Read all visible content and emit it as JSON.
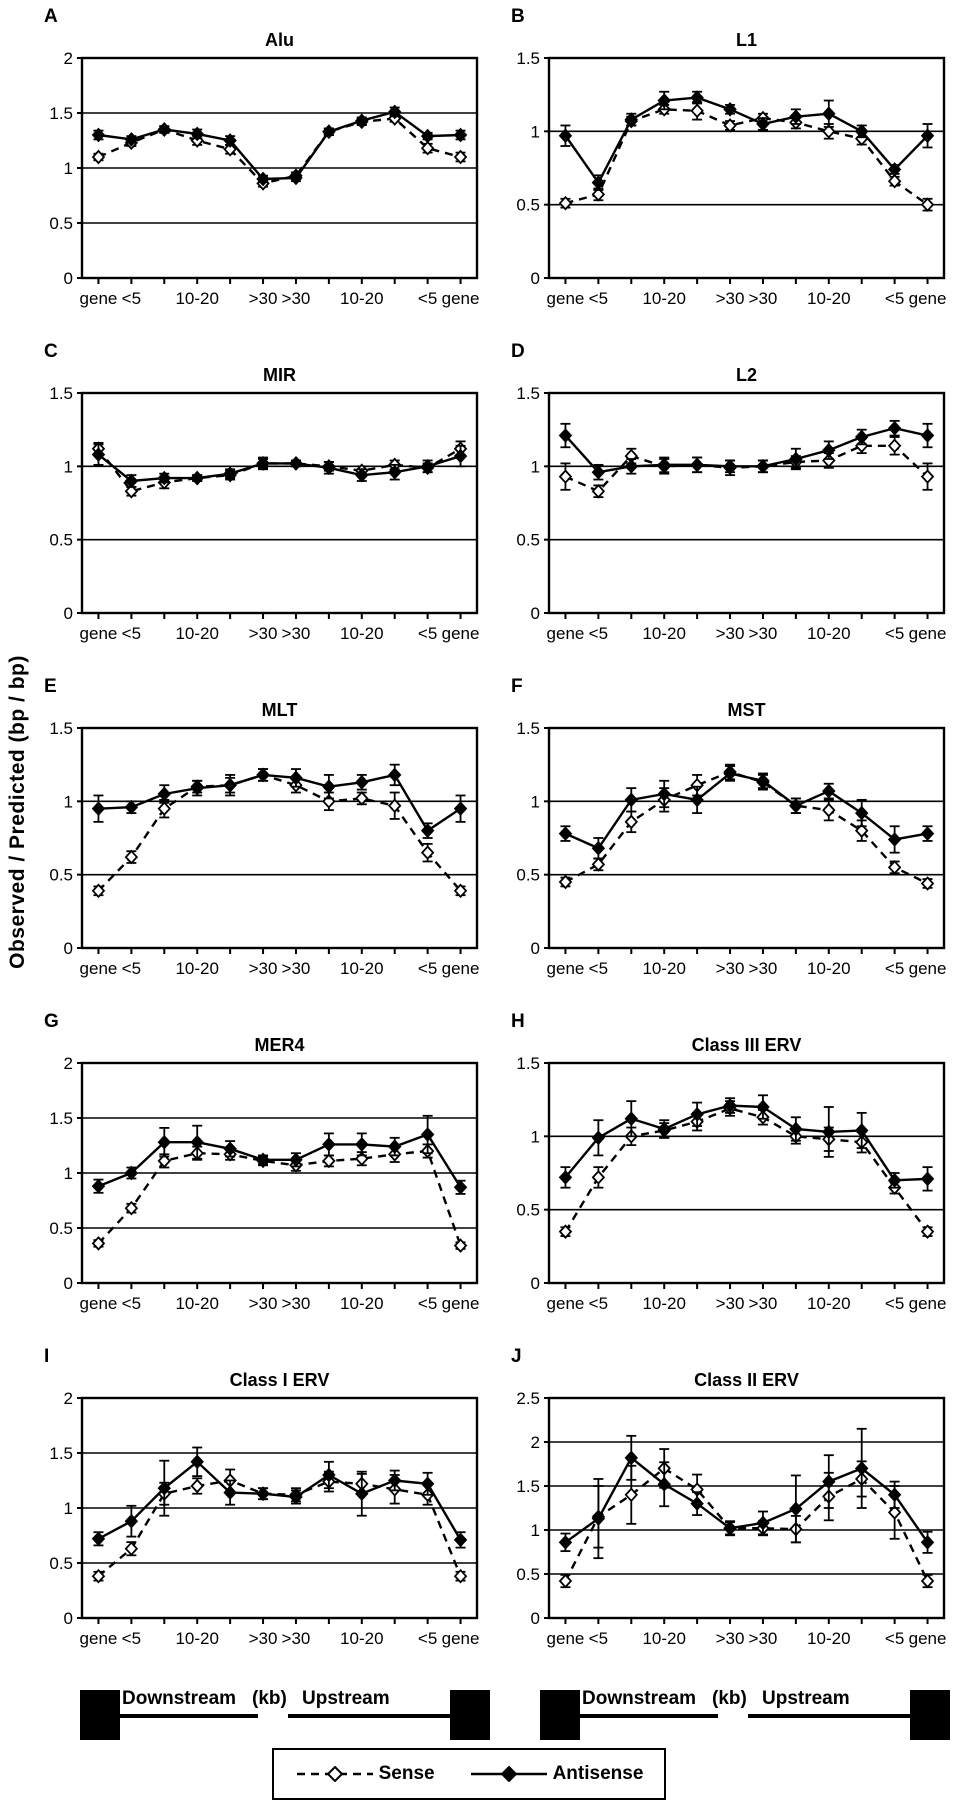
{
  "figure": {
    "ylabel": "Observed / Predicted (bp / bp)",
    "x_tick_labels": [
      "gene",
      "<5",
      "",
      "10-20",
      "",
      ">30",
      ">30",
      "",
      "10-20",
      "",
      "<5",
      "gene"
    ],
    "colors": {
      "line": "#000000",
      "background": "#ffffff"
    },
    "legend": {
      "sense_label": "Sense",
      "antisense_label": "Antisense",
      "sense_style": "dashed-open-diamond",
      "antisense_style": "solid-filled-diamond",
      "position": "bottom-center"
    },
    "gene_diagram": {
      "downstream_label": "Downstream",
      "kb_label": "(kb)",
      "upstream_label": "Upstream"
    }
  },
  "chart_data": [
    {
      "panel": "A",
      "title": "Alu",
      "type": "line",
      "ylim": [
        0,
        2
      ],
      "yticks": [
        0,
        0.5,
        1,
        1.5,
        2
      ],
      "grid": true,
      "series": [
        {
          "name": "Sense",
          "values": [
            1.1,
            1.23,
            1.35,
            1.25,
            1.17,
            0.86,
            0.93,
            1.33,
            1.42,
            1.45,
            1.18,
            1.1
          ],
          "errors": [
            0.03,
            0.03,
            0.03,
            0.04,
            0.04,
            0.03,
            0.03,
            0.03,
            0.03,
            0.03,
            0.04,
            0.04
          ]
        },
        {
          "name": "Antisense",
          "values": [
            1.3,
            1.26,
            1.35,
            1.31,
            1.25,
            0.9,
            0.91,
            1.33,
            1.43,
            1.51,
            1.29,
            1.3
          ],
          "errors": [
            0.04,
            0.03,
            0.03,
            0.04,
            0.04,
            0.03,
            0.03,
            0.03,
            0.03,
            0.04,
            0.03,
            0.04
          ]
        }
      ]
    },
    {
      "panel": "B",
      "title": "L1",
      "type": "line",
      "ylim": [
        0,
        1.5
      ],
      "yticks": [
        0,
        0.5,
        1,
        1.5
      ],
      "grid": true,
      "series": [
        {
          "name": "Sense",
          "values": [
            0.51,
            0.57,
            1.07,
            1.15,
            1.14,
            1.04,
            1.09,
            1.06,
            1.0,
            0.95,
            0.66,
            0.5
          ],
          "errors": [
            0.03,
            0.04,
            0.03,
            0.03,
            0.06,
            0.03,
            0.03,
            0.04,
            0.05,
            0.04,
            0.03,
            0.04
          ]
        },
        {
          "name": "Antisense",
          "values": [
            0.97,
            0.65,
            1.08,
            1.21,
            1.23,
            1.15,
            1.05,
            1.1,
            1.12,
            1.0,
            0.74,
            0.97
          ],
          "errors": [
            0.07,
            0.05,
            0.04,
            0.06,
            0.04,
            0.03,
            0.04,
            0.05,
            0.09,
            0.04,
            0.03,
            0.08
          ]
        }
      ]
    },
    {
      "panel": "C",
      "title": "MIR",
      "type": "line",
      "ylim": [
        0,
        1.5
      ],
      "yticks": [
        0,
        0.5,
        1,
        1.5
      ],
      "grid": true,
      "series": [
        {
          "name": "Sense",
          "values": [
            1.12,
            0.83,
            0.89,
            0.92,
            0.94,
            1.02,
            1.02,
            1.0,
            0.97,
            1.01,
            0.99,
            1.12
          ],
          "errors": [
            0.04,
            0.03,
            0.04,
            0.02,
            0.03,
            0.03,
            0.02,
            0.03,
            0.03,
            0.03,
            0.03,
            0.05
          ]
        },
        {
          "name": "Antisense",
          "values": [
            1.08,
            0.9,
            0.92,
            0.92,
            0.95,
            1.02,
            1.02,
            0.99,
            0.94,
            0.96,
            1.0,
            1.07
          ],
          "errors": [
            0.07,
            0.04,
            0.03,
            0.02,
            0.03,
            0.04,
            0.02,
            0.04,
            0.04,
            0.05,
            0.04,
            0.07
          ]
        }
      ]
    },
    {
      "panel": "D",
      "title": "L2",
      "type": "line",
      "ylim": [
        0,
        1.5
      ],
      "yticks": [
        0,
        0.5,
        1,
        1.5
      ],
      "grid": true,
      "series": [
        {
          "name": "Sense",
          "values": [
            0.93,
            0.83,
            1.07,
            1.0,
            1.01,
            0.99,
            1.0,
            1.03,
            1.04,
            1.14,
            1.14,
            0.93
          ],
          "errors": [
            0.09,
            0.04,
            0.05,
            0.05,
            0.05,
            0.05,
            0.04,
            0.04,
            0.05,
            0.05,
            0.06,
            0.09
          ]
        },
        {
          "name": "Antisense",
          "values": [
            1.21,
            0.96,
            1.0,
            1.01,
            1.01,
            1.0,
            1.0,
            1.05,
            1.11,
            1.2,
            1.26,
            1.21
          ],
          "errors": [
            0.08,
            0.05,
            0.05,
            0.05,
            0.05,
            0.04,
            0.04,
            0.07,
            0.06,
            0.05,
            0.05,
            0.08
          ]
        }
      ]
    },
    {
      "panel": "E",
      "title": "MLT",
      "type": "line",
      "ylim": [
        0,
        1.5
      ],
      "yticks": [
        0,
        0.5,
        1,
        1.5
      ],
      "grid": true,
      "series": [
        {
          "name": "Sense",
          "values": [
            0.39,
            0.62,
            0.95,
            1.1,
            1.11,
            1.18,
            1.11,
            1.0,
            1.02,
            0.97,
            0.65,
            0.39
          ],
          "errors": [
            0.03,
            0.04,
            0.06,
            0.04,
            0.05,
            0.04,
            0.05,
            0.06,
            0.04,
            0.09,
            0.06,
            0.03
          ]
        },
        {
          "name": "Antisense",
          "values": [
            0.95,
            0.96,
            1.05,
            1.09,
            1.11,
            1.18,
            1.16,
            1.1,
            1.13,
            1.18,
            0.8,
            0.95
          ],
          "errors": [
            0.09,
            0.04,
            0.06,
            0.05,
            0.07,
            0.04,
            0.06,
            0.08,
            0.05,
            0.07,
            0.05,
            0.09
          ]
        }
      ]
    },
    {
      "panel": "F",
      "title": "MST",
      "type": "line",
      "ylim": [
        0,
        1.5
      ],
      "yticks": [
        0,
        0.5,
        1,
        1.5
      ],
      "grid": true,
      "series": [
        {
          "name": "Sense",
          "values": [
            0.45,
            0.57,
            0.86,
            1.01,
            1.11,
            1.2,
            1.13,
            0.97,
            0.94,
            0.8,
            0.55,
            0.44
          ],
          "errors": [
            0.03,
            0.04,
            0.07,
            0.08,
            0.07,
            0.05,
            0.05,
            0.05,
            0.07,
            0.07,
            0.04,
            0.03
          ]
        },
        {
          "name": "Antisense",
          "values": [
            0.78,
            0.68,
            1.01,
            1.05,
            1.01,
            1.19,
            1.14,
            0.97,
            1.07,
            0.92,
            0.74,
            0.78
          ],
          "errors": [
            0.05,
            0.07,
            0.08,
            0.09,
            0.09,
            0.05,
            0.05,
            0.05,
            0.05,
            0.09,
            0.09,
            0.05
          ]
        }
      ]
    },
    {
      "panel": "G",
      "title": "MER4",
      "type": "line",
      "ylim": [
        0,
        2
      ],
      "yticks": [
        0,
        0.5,
        1,
        1.5,
        2
      ],
      "grid": true,
      "series": [
        {
          "name": "Sense",
          "values": [
            0.36,
            0.68,
            1.11,
            1.18,
            1.17,
            1.11,
            1.07,
            1.11,
            1.13,
            1.17,
            1.2,
            0.34
          ],
          "errors": [
            0.03,
            0.04,
            0.06,
            0.06,
            0.05,
            0.04,
            0.05,
            0.05,
            0.06,
            0.07,
            0.06,
            0.03
          ]
        },
        {
          "name": "Antisense",
          "values": [
            0.88,
            1.0,
            1.28,
            1.28,
            1.22,
            1.12,
            1.12,
            1.26,
            1.26,
            1.24,
            1.35,
            0.87
          ],
          "errors": [
            0.06,
            0.05,
            0.13,
            0.15,
            0.07,
            0.04,
            0.06,
            0.1,
            0.1,
            0.08,
            0.17,
            0.06
          ]
        }
      ]
    },
    {
      "panel": "H",
      "title": "Class III ERV",
      "type": "line",
      "ylim": [
        0,
        1.5
      ],
      "yticks": [
        0,
        0.5,
        1,
        1.5
      ],
      "grid": true,
      "series": [
        {
          "name": "Sense",
          "values": [
            0.35,
            0.72,
            1.0,
            1.04,
            1.1,
            1.19,
            1.13,
            1.0,
            0.98,
            0.96,
            0.65,
            0.35
          ],
          "errors": [
            0.03,
            0.07,
            0.06,
            0.05,
            0.06,
            0.05,
            0.05,
            0.05,
            0.08,
            0.07,
            0.04,
            0.03
          ]
        },
        {
          "name": "Antisense",
          "values": [
            0.72,
            0.99,
            1.12,
            1.05,
            1.15,
            1.21,
            1.2,
            1.05,
            1.03,
            1.04,
            0.7,
            0.71
          ],
          "errors": [
            0.07,
            0.12,
            0.12,
            0.06,
            0.08,
            0.05,
            0.08,
            0.08,
            0.17,
            0.12,
            0.05,
            0.08
          ]
        }
      ]
    },
    {
      "panel": "I",
      "title": "Class I ERV",
      "type": "line",
      "ylim": [
        0,
        2
      ],
      "yticks": [
        0,
        0.5,
        1,
        1.5,
        2
      ],
      "grid": true,
      "series": [
        {
          "name": "Sense",
          "values": [
            0.38,
            0.63,
            1.13,
            1.2,
            1.25,
            1.13,
            1.12,
            1.24,
            1.22,
            1.17,
            1.12,
            0.38
          ],
          "errors": [
            0.04,
            0.06,
            0.1,
            0.07,
            0.1,
            0.05,
            0.06,
            0.09,
            0.09,
            0.13,
            0.09,
            0.04
          ]
        },
        {
          "name": "Antisense",
          "values": [
            0.72,
            0.88,
            1.18,
            1.42,
            1.14,
            1.13,
            1.1,
            1.3,
            1.13,
            1.25,
            1.22,
            0.71
          ],
          "errors": [
            0.06,
            0.14,
            0.25,
            0.13,
            0.11,
            0.05,
            0.06,
            0.12,
            0.2,
            0.09,
            0.1,
            0.07
          ]
        }
      ]
    },
    {
      "panel": "J",
      "title": "Class II ERV",
      "type": "line",
      "ylim": [
        0,
        2.5
      ],
      "yticks": [
        0,
        0.5,
        1,
        1.5,
        2,
        2.5
      ],
      "grid": true,
      "series": [
        {
          "name": "Sense",
          "values": [
            0.42,
            1.15,
            1.4,
            1.7,
            1.46,
            1.02,
            1.02,
            1.01,
            1.38,
            1.58,
            1.2,
            0.42
          ],
          "errors": [
            0.07,
            0.35,
            0.33,
            0.22,
            0.17,
            0.07,
            0.08,
            0.15,
            0.27,
            0.2,
            0.3,
            0.07
          ]
        },
        {
          "name": "Antisense",
          "values": [
            0.86,
            1.13,
            1.82,
            1.52,
            1.3,
            1.02,
            1.08,
            1.24,
            1.55,
            1.7,
            1.4,
            0.86
          ],
          "errors": [
            0.1,
            0.45,
            0.25,
            0.25,
            0.13,
            0.08,
            0.13,
            0.38,
            0.3,
            0.45,
            0.15,
            0.12
          ]
        }
      ]
    }
  ]
}
